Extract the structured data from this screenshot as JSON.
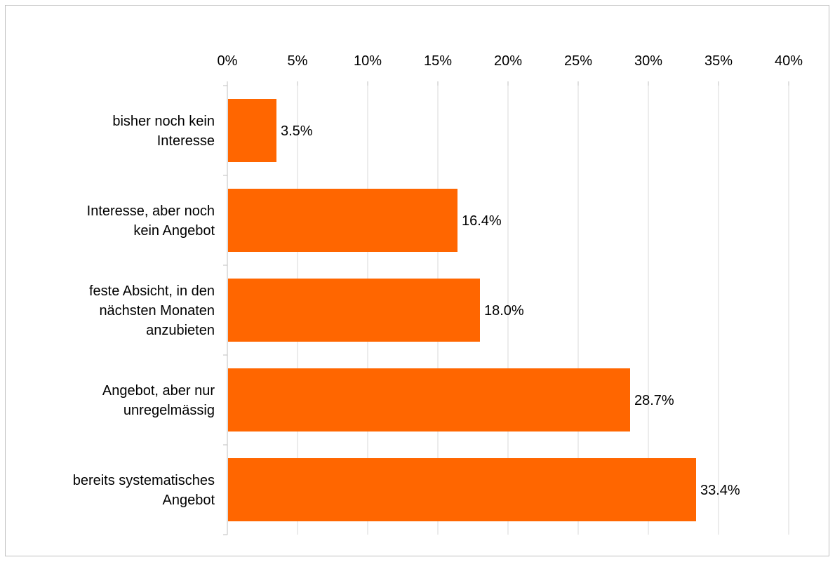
{
  "chart_data": {
    "type": "bar",
    "orientation": "horizontal",
    "title": "",
    "xlabel": "",
    "ylabel": "",
    "categories": [
      [
        "bisher noch kein",
        "Interesse"
      ],
      [
        "Interesse, aber noch",
        "kein Angebot"
      ],
      [
        "feste Absicht, in den",
        "nächsten Monaten",
        "anzubieten"
      ],
      [
        "Angebot, aber nur",
        "unregelmässig"
      ],
      [
        "bereits systematisches",
        "Angebot"
      ]
    ],
    "values": [
      3.5,
      16.4,
      18.0,
      28.7,
      33.4
    ],
    "data_labels": [
      "3.5%",
      "16.4%",
      "18.0%",
      "28.7%",
      "33.4%"
    ],
    "xlim": [
      0,
      40
    ],
    "ticks": [
      0,
      5,
      10,
      15,
      20,
      25,
      30,
      35,
      40
    ],
    "tick_labels": [
      "0%",
      "5%",
      "10%",
      "15%",
      "20%",
      "25%",
      "30%",
      "35%",
      "40%"
    ],
    "axis_position": "top",
    "grid": true,
    "legend": "none",
    "bar_color": "#ff6600",
    "grid_color": "#d9d9d9",
    "axis_color": "#bfbfbf"
  }
}
